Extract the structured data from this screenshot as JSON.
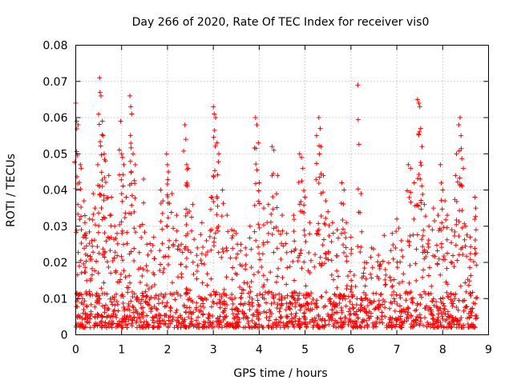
{
  "chart_data": {
    "type": "scatter",
    "title": "Day 266 of 2020, Rate Of TEC Index for receiver vis0",
    "xlabel": "GPS time / hours",
    "ylabel": "ROTI / TECUs",
    "xlim": [
      0,
      9
    ],
    "ylim": [
      0,
      0.08
    ],
    "grid": true,
    "marker": "+",
    "color": "#ff0000",
    "x_ticks": [
      "0",
      "1",
      "2",
      "3",
      "4",
      "5",
      "6",
      "7",
      "8",
      "9"
    ],
    "y_ticks": [
      "0",
      "0.01",
      "0.02",
      "0.03",
      "0.04",
      "0.05",
      "0.06",
      "0.07",
      "0.08"
    ],
    "series": [
      {
        "name": "ROTI",
        "points": [
          [
            0.0,
            0.064
          ],
          [
            0.02,
            0.059
          ],
          [
            0.05,
            0.058
          ],
          [
            0.1,
            0.047
          ],
          [
            0.12,
            0.046
          ],
          [
            0.18,
            0.037
          ],
          [
            0.2,
            0.031
          ],
          [
            0.22,
            0.028
          ],
          [
            0.3,
            0.032
          ],
          [
            0.35,
            0.026
          ],
          [
            0.38,
            0.039
          ],
          [
            0.42,
            0.035
          ],
          [
            0.48,
            0.047
          ],
          [
            0.52,
            0.071
          ],
          [
            0.53,
            0.067
          ],
          [
            0.55,
            0.066
          ],
          [
            0.58,
            0.059
          ],
          [
            0.6,
            0.055
          ],
          [
            0.62,
            0.05
          ],
          [
            0.65,
            0.048
          ],
          [
            0.72,
            0.044
          ],
          [
            0.78,
            0.038
          ],
          [
            0.85,
            0.03
          ],
          [
            0.9,
            0.028
          ],
          [
            0.98,
            0.059
          ],
          [
            1.0,
            0.05
          ],
          [
            1.02,
            0.049
          ],
          [
            1.05,
            0.047
          ],
          [
            1.1,
            0.038
          ],
          [
            1.18,
            0.066
          ],
          [
            1.2,
            0.063
          ],
          [
            1.22,
            0.061
          ],
          [
            1.25,
            0.05
          ],
          [
            1.3,
            0.047
          ],
          [
            1.4,
            0.03
          ],
          [
            1.48,
            0.043
          ],
          [
            1.55,
            0.025
          ],
          [
            1.7,
            0.027
          ],
          [
            1.85,
            0.04
          ],
          [
            1.9,
            0.037
          ],
          [
            1.98,
            0.05
          ],
          [
            2.0,
            0.047
          ],
          [
            2.02,
            0.045
          ],
          [
            2.1,
            0.039
          ],
          [
            2.2,
            0.033
          ],
          [
            2.3,
            0.025
          ],
          [
            2.38,
            0.058
          ],
          [
            2.4,
            0.054
          ],
          [
            2.42,
            0.047
          ],
          [
            2.45,
            0.046
          ],
          [
            2.55,
            0.036
          ],
          [
            2.65,
            0.024
          ],
          [
            2.75,
            0.031
          ],
          [
            2.85,
            0.026
          ],
          [
            2.95,
            0.038
          ],
          [
            3.0,
            0.063
          ],
          [
            3.02,
            0.061
          ],
          [
            3.05,
            0.06
          ],
          [
            3.08,
            0.053
          ],
          [
            3.12,
            0.05
          ],
          [
            3.2,
            0.04
          ],
          [
            3.3,
            0.033
          ],
          [
            3.4,
            0.029
          ],
          [
            3.5,
            0.028
          ],
          [
            3.6,
            0.025
          ],
          [
            3.7,
            0.024
          ],
          [
            3.8,
            0.03
          ],
          [
            3.92,
            0.06
          ],
          [
            3.95,
            0.058
          ],
          [
            3.98,
            0.053
          ],
          [
            4.0,
            0.042
          ],
          [
            4.1,
            0.035
          ],
          [
            4.2,
            0.036
          ],
          [
            4.28,
            0.052
          ],
          [
            4.32,
            0.051
          ],
          [
            4.4,
            0.044
          ],
          [
            4.5,
            0.033
          ],
          [
            4.6,
            0.028
          ],
          [
            4.75,
            0.033
          ],
          [
            4.88,
            0.05
          ],
          [
            4.92,
            0.049
          ],
          [
            4.95,
            0.046
          ],
          [
            5.0,
            0.038
          ],
          [
            5.1,
            0.031
          ],
          [
            5.25,
            0.055
          ],
          [
            5.3,
            0.06
          ],
          [
            5.33,
            0.057
          ],
          [
            5.35,
            0.052
          ],
          [
            5.4,
            0.044
          ],
          [
            5.45,
            0.037
          ],
          [
            5.5,
            0.034
          ],
          [
            5.6,
            0.031
          ],
          [
            5.7,
            0.029
          ],
          [
            5.8,
            0.042
          ],
          [
            5.85,
            0.04
          ],
          [
            5.9,
            0.031
          ],
          [
            6.0,
            0.027
          ],
          [
            6.15,
            0.069
          ],
          [
            6.22,
            0.039
          ],
          [
            6.3,
            0.02
          ],
          [
            6.45,
            0.024
          ],
          [
            6.6,
            0.022
          ],
          [
            6.75,
            0.018
          ],
          [
            6.9,
            0.028
          ],
          [
            7.0,
            0.032
          ],
          [
            7.1,
            0.026
          ],
          [
            7.25,
            0.047
          ],
          [
            7.3,
            0.046
          ],
          [
            7.38,
            0.042
          ],
          [
            7.45,
            0.065
          ],
          [
            7.48,
            0.064
          ],
          [
            7.5,
            0.063
          ],
          [
            7.52,
            0.057
          ],
          [
            7.55,
            0.052
          ],
          [
            7.6,
            0.036
          ],
          [
            7.7,
            0.03
          ],
          [
            7.8,
            0.035
          ],
          [
            7.9,
            0.033
          ],
          [
            7.95,
            0.047
          ],
          [
            8.0,
            0.04
          ],
          [
            8.05,
            0.037
          ],
          [
            8.1,
            0.033
          ],
          [
            8.2,
            0.029
          ],
          [
            8.28,
            0.044
          ],
          [
            8.3,
            0.05
          ],
          [
            8.35,
            0.058
          ],
          [
            8.38,
            0.06
          ],
          [
            8.4,
            0.055
          ],
          [
            8.45,
            0.046
          ],
          [
            8.5,
            0.03
          ],
          [
            8.6,
            0.027
          ],
          [
            8.7,
            0.038
          ],
          [
            8.72,
            0.035
          ]
        ]
      }
    ],
    "background_band": {
      "description": "dense cloud of points across the full time range",
      "x_range": [
        0,
        8.75
      ],
      "y_range": [
        0.002,
        0.012
      ]
    }
  }
}
